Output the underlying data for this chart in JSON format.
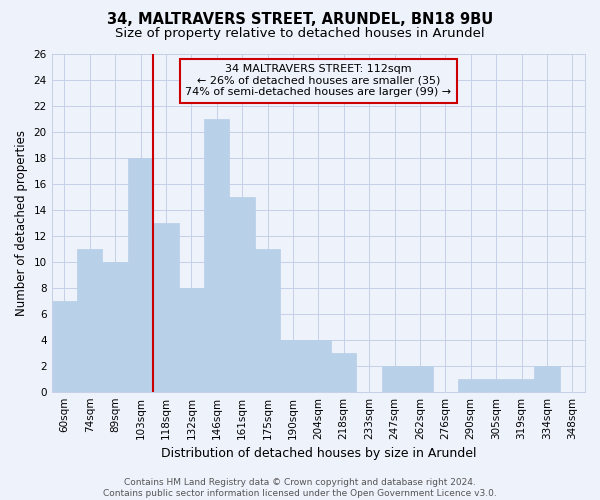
{
  "title": "34, MALTRAVERS STREET, ARUNDEL, BN18 9BU",
  "subtitle": "Size of property relative to detached houses in Arundel",
  "xlabel": "Distribution of detached houses by size in Arundel",
  "ylabel": "Number of detached properties",
  "categories": [
    "60sqm",
    "74sqm",
    "89sqm",
    "103sqm",
    "118sqm",
    "132sqm",
    "146sqm",
    "161sqm",
    "175sqm",
    "190sqm",
    "204sqm",
    "218sqm",
    "233sqm",
    "247sqm",
    "262sqm",
    "276sqm",
    "290sqm",
    "305sqm",
    "319sqm",
    "334sqm",
    "348sqm"
  ],
  "values": [
    7,
    11,
    10,
    18,
    13,
    8,
    21,
    15,
    11,
    4,
    4,
    3,
    0,
    2,
    2,
    0,
    1,
    1,
    1,
    2,
    0
  ],
  "bar_color": "#b8d0e8",
  "bar_edge_color": "#b8d0e8",
  "highlight_line_color": "#cc0000",
  "highlight_line_index": 4,
  "annotation_box_text": "34 MALTRAVERS STREET: 112sqm\n← 26% of detached houses are smaller (35)\n74% of semi-detached houses are larger (99) →",
  "annotation_box_edge_color": "#cc0000",
  "ylim": [
    0,
    26
  ],
  "yticks": [
    0,
    2,
    4,
    6,
    8,
    10,
    12,
    14,
    16,
    18,
    20,
    22,
    24,
    26
  ],
  "footer_line1": "Contains HM Land Registry data © Crown copyright and database right 2024.",
  "footer_line2": "Contains public sector information licensed under the Open Government Licence v3.0.",
  "bg_color": "#eef2fb",
  "grid_color": "#c5cfe8",
  "title_fontsize": 10.5,
  "subtitle_fontsize": 9.5,
  "xlabel_fontsize": 9,
  "ylabel_fontsize": 8.5,
  "tick_fontsize": 7.5,
  "annotation_fontsize": 8,
  "footer_fontsize": 6.5
}
